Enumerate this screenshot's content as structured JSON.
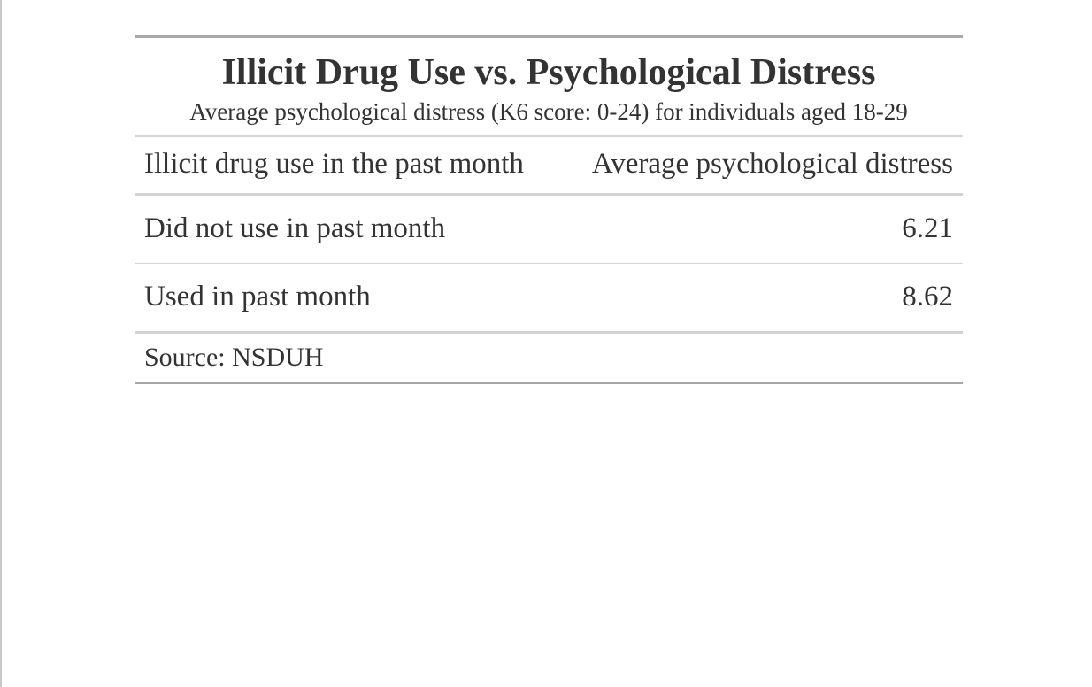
{
  "chart_data": {
    "type": "table",
    "title": "Illicit Drug Use vs. Psychological Distress",
    "subtitle": "Average psychological distress (K6 score: 0-24) for individuals aged 18-29",
    "columns": [
      "Illicit drug use in the past month",
      "Average psychological distress"
    ],
    "rows": [
      {
        "label": "Did not use in past month",
        "value": "6.21"
      },
      {
        "label": "Used in past month",
        "value": "8.62"
      }
    ],
    "source": "Source: NSDUH"
  }
}
